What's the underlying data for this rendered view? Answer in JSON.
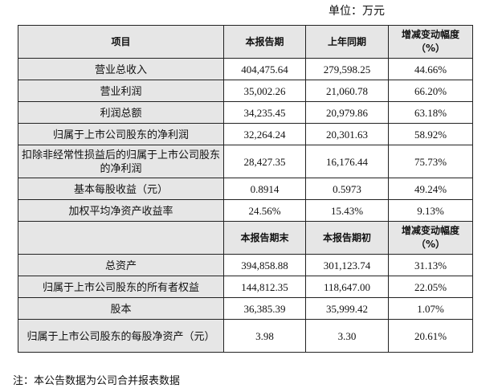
{
  "unit": "单位：万元",
  "header1": [
    "项目",
    "本报告期",
    "上年同期",
    "增减变动幅度（%）"
  ],
  "rows1": [
    [
      "营业总收入",
      "404,475.64",
      "279,598.25",
      "44.66%"
    ],
    [
      "营业利润",
      "35,002.26",
      "21,060.78",
      "66.20%"
    ],
    [
      "利润总额",
      "34,235.45",
      "20,979.86",
      "63.18%"
    ],
    [
      "归属于上市公司股东的净利润",
      "32,264.24",
      "20,301.63",
      "58.92%"
    ],
    [
      "扣除非经常性损益后的归属于上市公司股东的净利润",
      "28,427.35",
      "16,176.44",
      "75.73%"
    ],
    [
      "基本每股收益（元）",
      "0.8914",
      "0.5973",
      "49.24%"
    ],
    [
      "加权平均净资产收益率",
      "24.56%",
      "15.43%",
      "9.13%"
    ]
  ],
  "header2": [
    "",
    "本报告期末",
    "本报告期初",
    "增减变动幅度（%）"
  ],
  "rows2": [
    [
      "总资产",
      "394,858.88",
      "301,123.74",
      "31.13%"
    ],
    [
      "归属于上市公司股东的所有者权益",
      "144,812.35",
      "118,647.00",
      "22.05%"
    ],
    [
      "股本",
      "36,385.39",
      "35,999.42",
      "1.07%"
    ],
    [
      "归属于上市公司股东的每股净资产（元）",
      "3.98",
      "3.30",
      "20.61%"
    ]
  ],
  "note": "注：本公告数据为公司合并报表数据"
}
